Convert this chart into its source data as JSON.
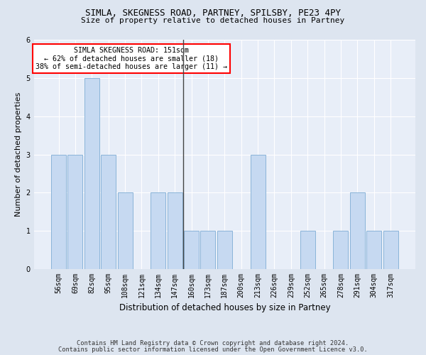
{
  "title1": "SIMLA, SKEGNESS ROAD, PARTNEY, SPILSBY, PE23 4PY",
  "title2": "Size of property relative to detached houses in Partney",
  "xlabel": "Distribution of detached houses by size in Partney",
  "ylabel": "Number of detached properties",
  "categories": [
    "56sqm",
    "69sqm",
    "82sqm",
    "95sqm",
    "108sqm",
    "121sqm",
    "134sqm",
    "147sqm",
    "160sqm",
    "173sqm",
    "187sqm",
    "200sqm",
    "213sqm",
    "226sqm",
    "239sqm",
    "252sqm",
    "265sqm",
    "278sqm",
    "291sqm",
    "304sqm",
    "317sqm"
  ],
  "values": [
    3,
    3,
    5,
    3,
    2,
    0,
    2,
    2,
    1,
    1,
    1,
    0,
    3,
    0,
    0,
    1,
    0,
    1,
    2,
    1,
    1
  ],
  "bar_color": "#c6d9f1",
  "bar_edge_color": "#8ab4d9",
  "vline_x": 7.5,
  "annotation_text": "SIMLA SKEGNESS ROAD: 151sqm\n← 62% of detached houses are smaller (18)\n38% of semi-detached houses are larger (11) →",
  "annotation_box_color": "white",
  "annotation_box_edge_color": "red",
  "ylim": [
    0,
    6
  ],
  "yticks": [
    0,
    1,
    2,
    3,
    4,
    5,
    6
  ],
  "footer1": "Contains HM Land Registry data © Crown copyright and database right 2024.",
  "footer2": "Contains public sector information licensed under the Open Government Licence v3.0.",
  "bg_color": "#dde5f0",
  "plot_bg_color": "#e8eef8"
}
